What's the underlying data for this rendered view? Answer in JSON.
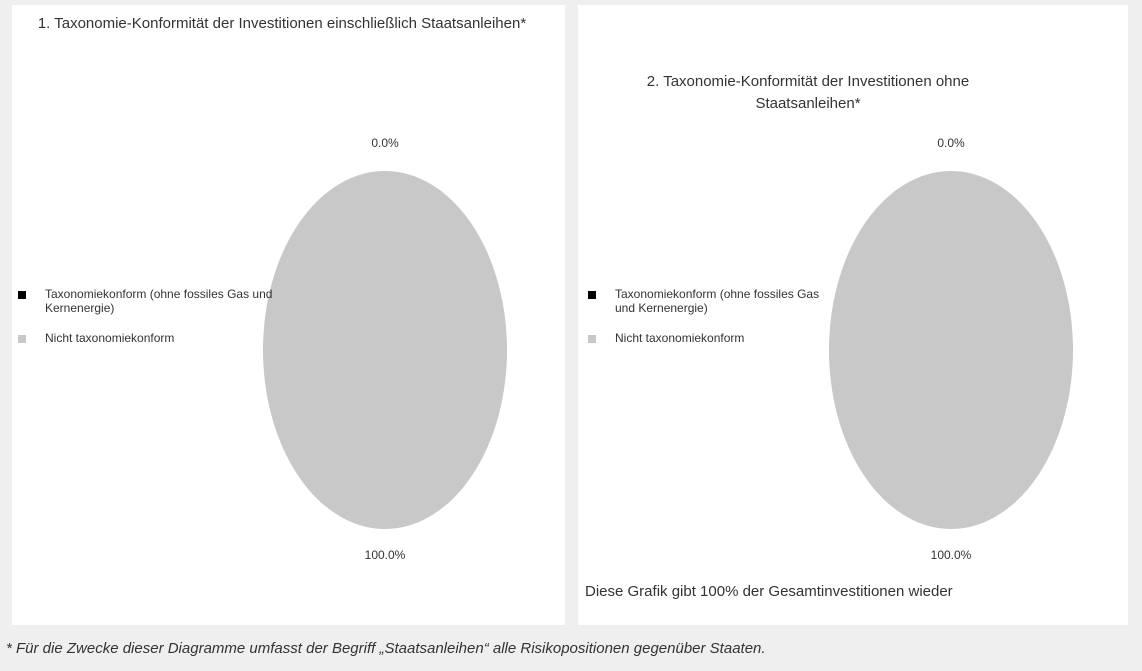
{
  "chart_data": [
    {
      "type": "pie",
      "title": "1. Taxonomie-Konformität der Investitionen einschließlich Staatsanleihen*",
      "categories": [
        "Taxonomiekonform (ohne fossiles Gas und Kernenergie)",
        "Nicht taxonomiekonform"
      ],
      "values": [
        0,
        100
      ],
      "value_labels": [
        "0.0%",
        "100.0%"
      ],
      "colors": [
        "#000000",
        "#c8c8c8"
      ]
    },
    {
      "type": "pie",
      "title": "2. Taxonomie-Konformität der Investitionen ohne Staatsanleihen*",
      "categories": [
        "Taxonomiekonform (ohne fossiles Gas und Kernenergie)",
        "Nicht taxonomiekonform"
      ],
      "values": [
        0,
        100
      ],
      "value_labels": [
        "0.0%",
        "100.0%"
      ],
      "colors": [
        "#000000",
        "#c8c8c8"
      ],
      "note": "Diese Grafik gibt 100% der Gesamtinvestitionen wieder"
    }
  ],
  "footnote": "* Für die Zwecke dieser Diagramme umfasst der Begriff „Staatsanleihen“ alle Risikopositionen gegenüber Staaten."
}
